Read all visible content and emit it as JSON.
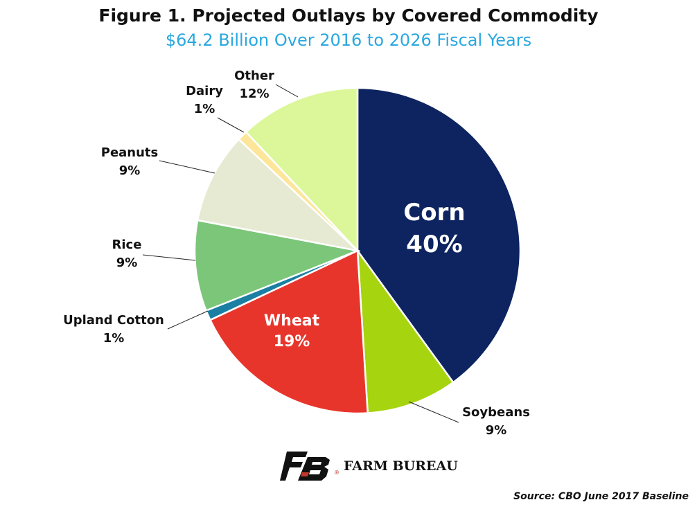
{
  "chart_data": {
    "type": "pie",
    "title": "Figure 1. Projected Outlays by Covered Commodity",
    "subtitle": "$64.2 Billion Over 2016 to 2026 Fiscal Years",
    "slices": [
      {
        "label": "Corn",
        "value_text": "40%",
        "value": 40,
        "color": "#0d2460"
      },
      {
        "label": "Soybeans",
        "value_text": "9%",
        "value": 9,
        "color": "#a6d40f"
      },
      {
        "label": "Wheat",
        "value_text": "19%",
        "value": 19,
        "color": "#e8352c"
      },
      {
        "label": "Upland Cotton",
        "value_text": "1%",
        "value": 1,
        "color": "#1a7fa3"
      },
      {
        "label": "Rice",
        "value_text": "9%",
        "value": 9,
        "color": "#7cc67a"
      },
      {
        "label": "Peanuts",
        "value_text": "9%",
        "value": 9,
        "color": "#e6ead2"
      },
      {
        "label": "Dairy",
        "value_text": "1%",
        "value": 1,
        "color": "#fde69a"
      },
      {
        "label": "Other",
        "value_text": "12%",
        "value": 12,
        "color": "#dcf79a"
      }
    ]
  },
  "colors": {
    "subtitle": "#29a8df",
    "brand_red": "#c0392b",
    "brand_black": "#111111"
  },
  "logo": {
    "name": "farm-bureau-logo",
    "text": "FARM BUREAU",
    "mark": "®"
  },
  "source": "Source: CBO June 2017 Baseline"
}
